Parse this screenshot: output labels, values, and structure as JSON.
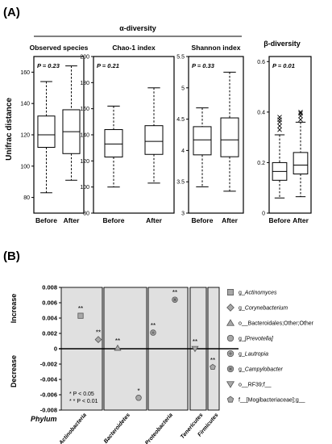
{
  "panel_a": {
    "label": "(A)",
    "alpha_title": "α-diversity",
    "beta_title": "β-diversity",
    "ylabel": "Unifrac distance"
  },
  "panel_b": {
    "label": "(B)",
    "xlabel": "Phylum",
    "ylabel_increase": "Increase",
    "ylabel_decrease": "Decrease",
    "sig_note_1": "* P < 0.05",
    "sig_note_2": "* * P < 0.01"
  },
  "chart_data": [
    {
      "type": "box",
      "title": "Observed species",
      "p_value": "P = 0.23",
      "categories": [
        "Before",
        "After"
      ],
      "ylim": [
        70,
        170
      ],
      "yticks": [
        80,
        100,
        120,
        140,
        160
      ],
      "boxes": [
        {
          "name": "Before",
          "whisker_low": 83,
          "q1": 112,
          "median": 120,
          "q3": 132,
          "whisker_high": 154
        },
        {
          "name": "After",
          "whisker_low": 91,
          "q1": 108,
          "median": 122,
          "q3": 136,
          "whisker_high": 164
        }
      ]
    },
    {
      "type": "box",
      "title": "Chao-1 index",
      "p_value": "P = 0.21",
      "categories": [
        "Before",
        "After"
      ],
      "ylim": [
        80,
        200
      ],
      "yticks": [
        80,
        100,
        120,
        140,
        160,
        180,
        200
      ],
      "boxes": [
        {
          "name": "Before",
          "whisker_low": 100,
          "q1": 123,
          "median": 133,
          "q3": 144,
          "whisker_high": 162
        },
        {
          "name": "After",
          "whisker_low": 103,
          "q1": 125,
          "median": 135,
          "q3": 147,
          "whisker_high": 176
        }
      ]
    },
    {
      "type": "box",
      "title": "Shannon index",
      "p_value": "P = 0.33",
      "categories": [
        "Before",
        "After"
      ],
      "ylim": [
        3.0,
        5.5
      ],
      "yticks": [
        3.0,
        3.5,
        4.0,
        4.5,
        5.0,
        5.5
      ],
      "boxes": [
        {
          "name": "Before",
          "whisker_low": 3.42,
          "q1": 3.93,
          "median": 4.17,
          "q3": 4.38,
          "whisker_high": 4.68
        },
        {
          "name": "After",
          "whisker_low": 3.35,
          "q1": 3.9,
          "median": 4.17,
          "q3": 4.52,
          "whisker_high": 5.25
        }
      ]
    },
    {
      "type": "box",
      "title": "",
      "p_value": "P = 0.01",
      "categories": [
        "Before",
        "After"
      ],
      "ylim": [
        0,
        0.62
      ],
      "yticks": [
        0,
        0.2,
        0.4,
        0.6
      ],
      "boxes": [
        {
          "name": "Before",
          "whisker_low": 0.06,
          "q1": 0.13,
          "median": 0.165,
          "q3": 0.2,
          "whisker_high": 0.31,
          "outliers": [
            0.33,
            0.345,
            0.36,
            0.37,
            0.38
          ]
        },
        {
          "name": "After",
          "whisker_low": 0.065,
          "q1": 0.155,
          "median": 0.19,
          "q3": 0.24,
          "whisker_high": 0.36,
          "outliers": [
            0.37,
            0.385,
            0.395,
            0.4
          ]
        }
      ]
    },
    {
      "type": "scatter",
      "ylim": [
        -0.008,
        0.008
      ],
      "yticks": [
        0.008,
        0.006,
        0.004,
        0.002,
        0,
        -0.002,
        -0.004,
        -0.006,
        -0.008
      ],
      "ytick_labels": [
        "0.008",
        "0.006",
        "0.004",
        "0.002",
        "0",
        "-0.002",
        "-0.004",
        "-0.006",
        "-0.008"
      ],
      "groups": [
        "Actinobacteria",
        "Bacteroidetes",
        "Proteobacteria",
        "Tenericutes",
        "Firmicutes"
      ],
      "points": [
        {
          "series": "g_Actinomyces",
          "group": "Actinobacteria",
          "y": 0.0043,
          "sig": "**",
          "marker": "square"
        },
        {
          "series": "g_Corynebacterium",
          "group": "Actinobacteria",
          "y": 0.0012,
          "sig": "**",
          "marker": "diamond"
        },
        {
          "series": "o_Bacteroidales;Other;Other",
          "group": "Bacteroidetes",
          "y": 0.0001,
          "sig": "**",
          "marker": "triangle"
        },
        {
          "series": "g_[Prevotella]",
          "group": "Bacteroidetes",
          "y": -0.0064,
          "sig": "*",
          "marker": "circle"
        },
        {
          "series": "g_Lautropia",
          "group": "Proteobacteria",
          "y": 0.0021,
          "sig": "**",
          "marker": "circle-plus"
        },
        {
          "series": "g_Campylobacter",
          "group": "Proteobacteria",
          "y": 0.0064,
          "sig": "**",
          "marker": "circle-star"
        },
        {
          "series": "o_RF39;f_",
          "group": "Tenericutes",
          "y": 0.0,
          "sig": "**",
          "marker": "triangle-down"
        },
        {
          "series": "f_[Mogibacteriaceae];g_",
          "group": "Firmicutes",
          "y": -0.0024,
          "sig": "**",
          "marker": "pentagon"
        }
      ],
      "legend": [
        {
          "prefix": "g_",
          "name": "Actinomyces",
          "italic": true,
          "marker": "square"
        },
        {
          "prefix": "g_",
          "name": "Corynebacterium",
          "italic": true,
          "marker": "diamond"
        },
        {
          "prefix": "",
          "name": "o__Bacteroidales;Other;Other",
          "italic": false,
          "marker": "triangle"
        },
        {
          "prefix": "g_",
          "name": "[Prevotella]",
          "italic": true,
          "marker": "circle"
        },
        {
          "prefix": "g_",
          "name": "Lautropia",
          "italic": true,
          "marker": "circle-plus"
        },
        {
          "prefix": "g_",
          "name": "Campylobacter",
          "italic": true,
          "marker": "circle-star"
        },
        {
          "prefix": "",
          "name": "o__RF39;f__",
          "italic": false,
          "marker": "triangle-down"
        },
        {
          "prefix": "",
          "name": "f__[Mogibacteriaceae];g__",
          "italic": false,
          "marker": "pentagon"
        }
      ]
    }
  ]
}
